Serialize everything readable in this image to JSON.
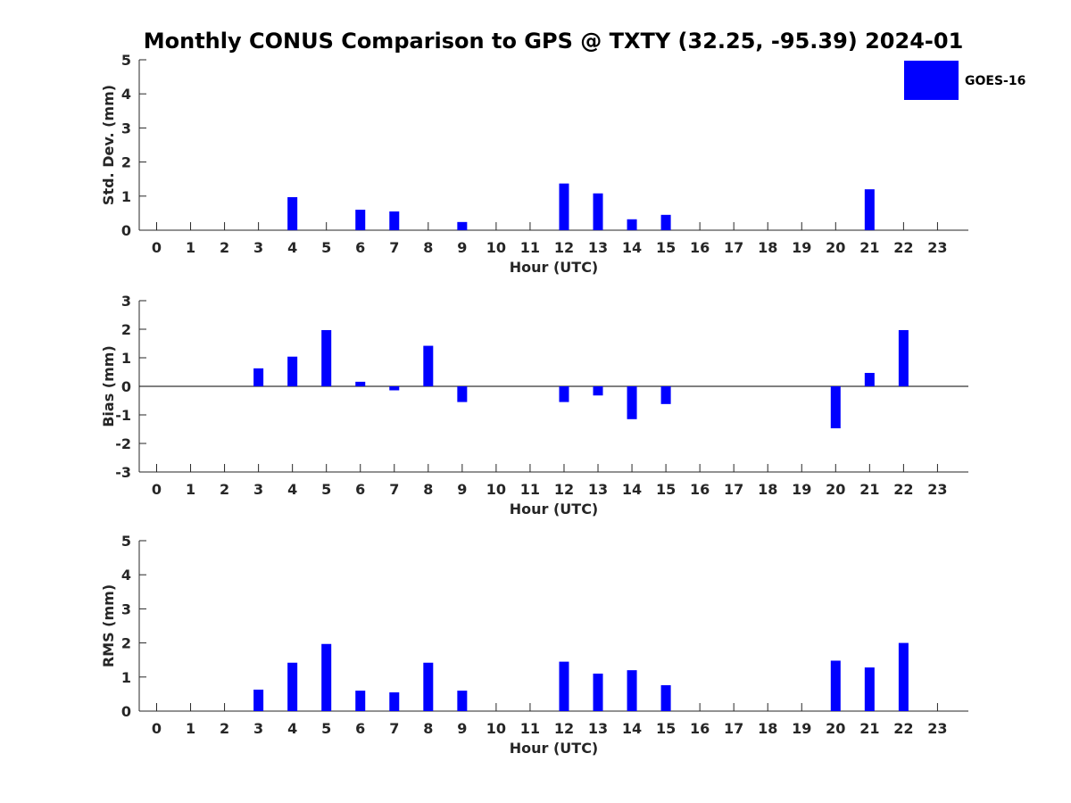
{
  "figure_title": "Monthly CONUS Comparison to GPS @ TXTY (32.25, -95.39) 2024-01",
  "legend": {
    "label": "GOES-16",
    "color": "#0000ff",
    "placement": "top-right"
  },
  "colors": {
    "bar": "#0000ff",
    "axis": "#262626",
    "background": "#ffffff"
  },
  "chart_data": [
    {
      "type": "bar",
      "xlabel": "Hour (UTC)",
      "ylabel": "Std. Dev. (mm)",
      "ylim": [
        0,
        5
      ],
      "yticks": [
        0,
        1,
        2,
        3,
        4,
        5
      ],
      "categories": [
        "0",
        "1",
        "2",
        "3",
        "4",
        "5",
        "6",
        "7",
        "8",
        "9",
        "10",
        "11",
        "12",
        "13",
        "14",
        "15",
        "16",
        "17",
        "18",
        "19",
        "20",
        "21",
        "22",
        "23"
      ],
      "series": [
        {
          "name": "GOES-16",
          "values": [
            null,
            null,
            null,
            null,
            0.97,
            null,
            0.6,
            0.55,
            null,
            0.24,
            null,
            null,
            1.37,
            1.08,
            0.32,
            0.45,
            null,
            null,
            null,
            null,
            null,
            1.2,
            null,
            null
          ]
        }
      ],
      "grid": false
    },
    {
      "type": "bar",
      "xlabel": "Hour (UTC)",
      "ylabel": "Bias (mm)",
      "ylim": [
        -3,
        3
      ],
      "yticks": [
        -3,
        -2,
        -1,
        0,
        1,
        2,
        3
      ],
      "categories": [
        "0",
        "1",
        "2",
        "3",
        "4",
        "5",
        "6",
        "7",
        "8",
        "9",
        "10",
        "11",
        "12",
        "13",
        "14",
        "15",
        "16",
        "17",
        "18",
        "19",
        "20",
        "21",
        "22",
        "23"
      ],
      "series": [
        {
          "name": "GOES-16",
          "values": [
            null,
            null,
            null,
            0.63,
            1.04,
            1.97,
            0.16,
            -0.14,
            1.42,
            -0.55,
            null,
            null,
            -0.55,
            -0.32,
            -1.15,
            -0.62,
            null,
            null,
            null,
            null,
            -1.47,
            0.47,
            1.97,
            null
          ]
        }
      ],
      "grid": false
    },
    {
      "type": "bar",
      "xlabel": "Hour (UTC)",
      "ylabel": "RMS (mm)",
      "ylim": [
        0,
        5
      ],
      "yticks": [
        0,
        1,
        2,
        3,
        4,
        5
      ],
      "categories": [
        "0",
        "1",
        "2",
        "3",
        "4",
        "5",
        "6",
        "7",
        "8",
        "9",
        "10",
        "11",
        "12",
        "13",
        "14",
        "15",
        "16",
        "17",
        "18",
        "19",
        "20",
        "21",
        "22",
        "23"
      ],
      "series": [
        {
          "name": "GOES-16",
          "values": [
            null,
            null,
            null,
            0.63,
            1.42,
            1.97,
            0.6,
            0.55,
            1.42,
            0.6,
            null,
            null,
            1.45,
            1.1,
            1.2,
            0.76,
            null,
            null,
            null,
            null,
            1.48,
            1.28,
            2.0,
            null
          ]
        }
      ],
      "grid": false
    }
  ]
}
